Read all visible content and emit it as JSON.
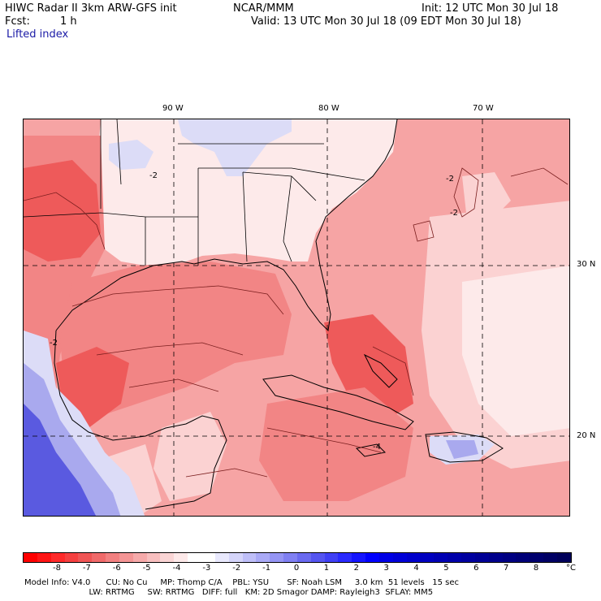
{
  "header": {
    "title_left": "HIWC Radar II 3km ARW-GFS init",
    "org": "NCAR/MMM",
    "init": "Init: 12 UTC Mon 30 Jul 18",
    "fcst_label": "Fcst:",
    "fcst_value": "1 h",
    "valid": "Valid: 13 UTC Mon 30 Jul 18 (09 EDT Mon 30 Jul 18)",
    "field": "Lifted index"
  },
  "map": {
    "lon_labels": [
      "90 W",
      "80 W",
      "70 W"
    ],
    "lat_labels": [
      "30 N",
      "20 N"
    ],
    "contour_labels": [
      "-2",
      "-2",
      "-2",
      "-2",
      "-4"
    ],
    "colors": {
      "ocean_base": "#f6a4a4",
      "warm_deep": "#ee5a5a",
      "warm_mid": "#f28585",
      "pale": "#fbd2d2",
      "lightest": "#fdeaea",
      "cool_light": "#dcdcf7",
      "cool_mid": "#a9a9ee",
      "cool_deep": "#5a5ae0",
      "coast": "#000000",
      "contour": "#7a1e1e"
    }
  },
  "colorbar": {
    "colors": [
      "#ff0000",
      "#ff1515",
      "#ff2a2a",
      "#f54040",
      "#f05555",
      "#f06a6a",
      "#f28080",
      "#f49595",
      "#f6aaaa",
      "#f8bfbf",
      "#fad5d5",
      "#fde9e9",
      "#ffffff",
      "#ffffff",
      "#e9e9fd",
      "#d5d5fa",
      "#bfbff8",
      "#aaaaf6",
      "#9595f4",
      "#8080f2",
      "#6a6af0",
      "#5555f0",
      "#4040f5",
      "#2a2aff",
      "#1515ff",
      "#0000ff",
      "#0000e6",
      "#0000d8",
      "#0000cc",
      "#0000c0",
      "#0000b4",
      "#0000aa",
      "#0000a0",
      "#000096",
      "#00008c",
      "#000082",
      "#000078",
      "#00006e",
      "#000064",
      "#00005a"
    ],
    "ticks": [
      "-8",
      "-7",
      "-6",
      "-5",
      "-4",
      "-3",
      "-2",
      "-1",
      "0",
      "1",
      "2",
      "3",
      "4",
      "5",
      "6",
      "7",
      "8"
    ],
    "unit": "°C"
  },
  "model_info": {
    "line1": "Model Info: V4.0      CU: No Cu     MP: Thomp C/A    PBL: YSU       SF: Noah LSM     3.0 km  51 levels   15 sec",
    "line2": "                         LW: RRTMG     SW: RRTMG   DIFF: full   KM: 2D Smagor DAMP: Rayleigh3  SFLAY: MM5"
  }
}
